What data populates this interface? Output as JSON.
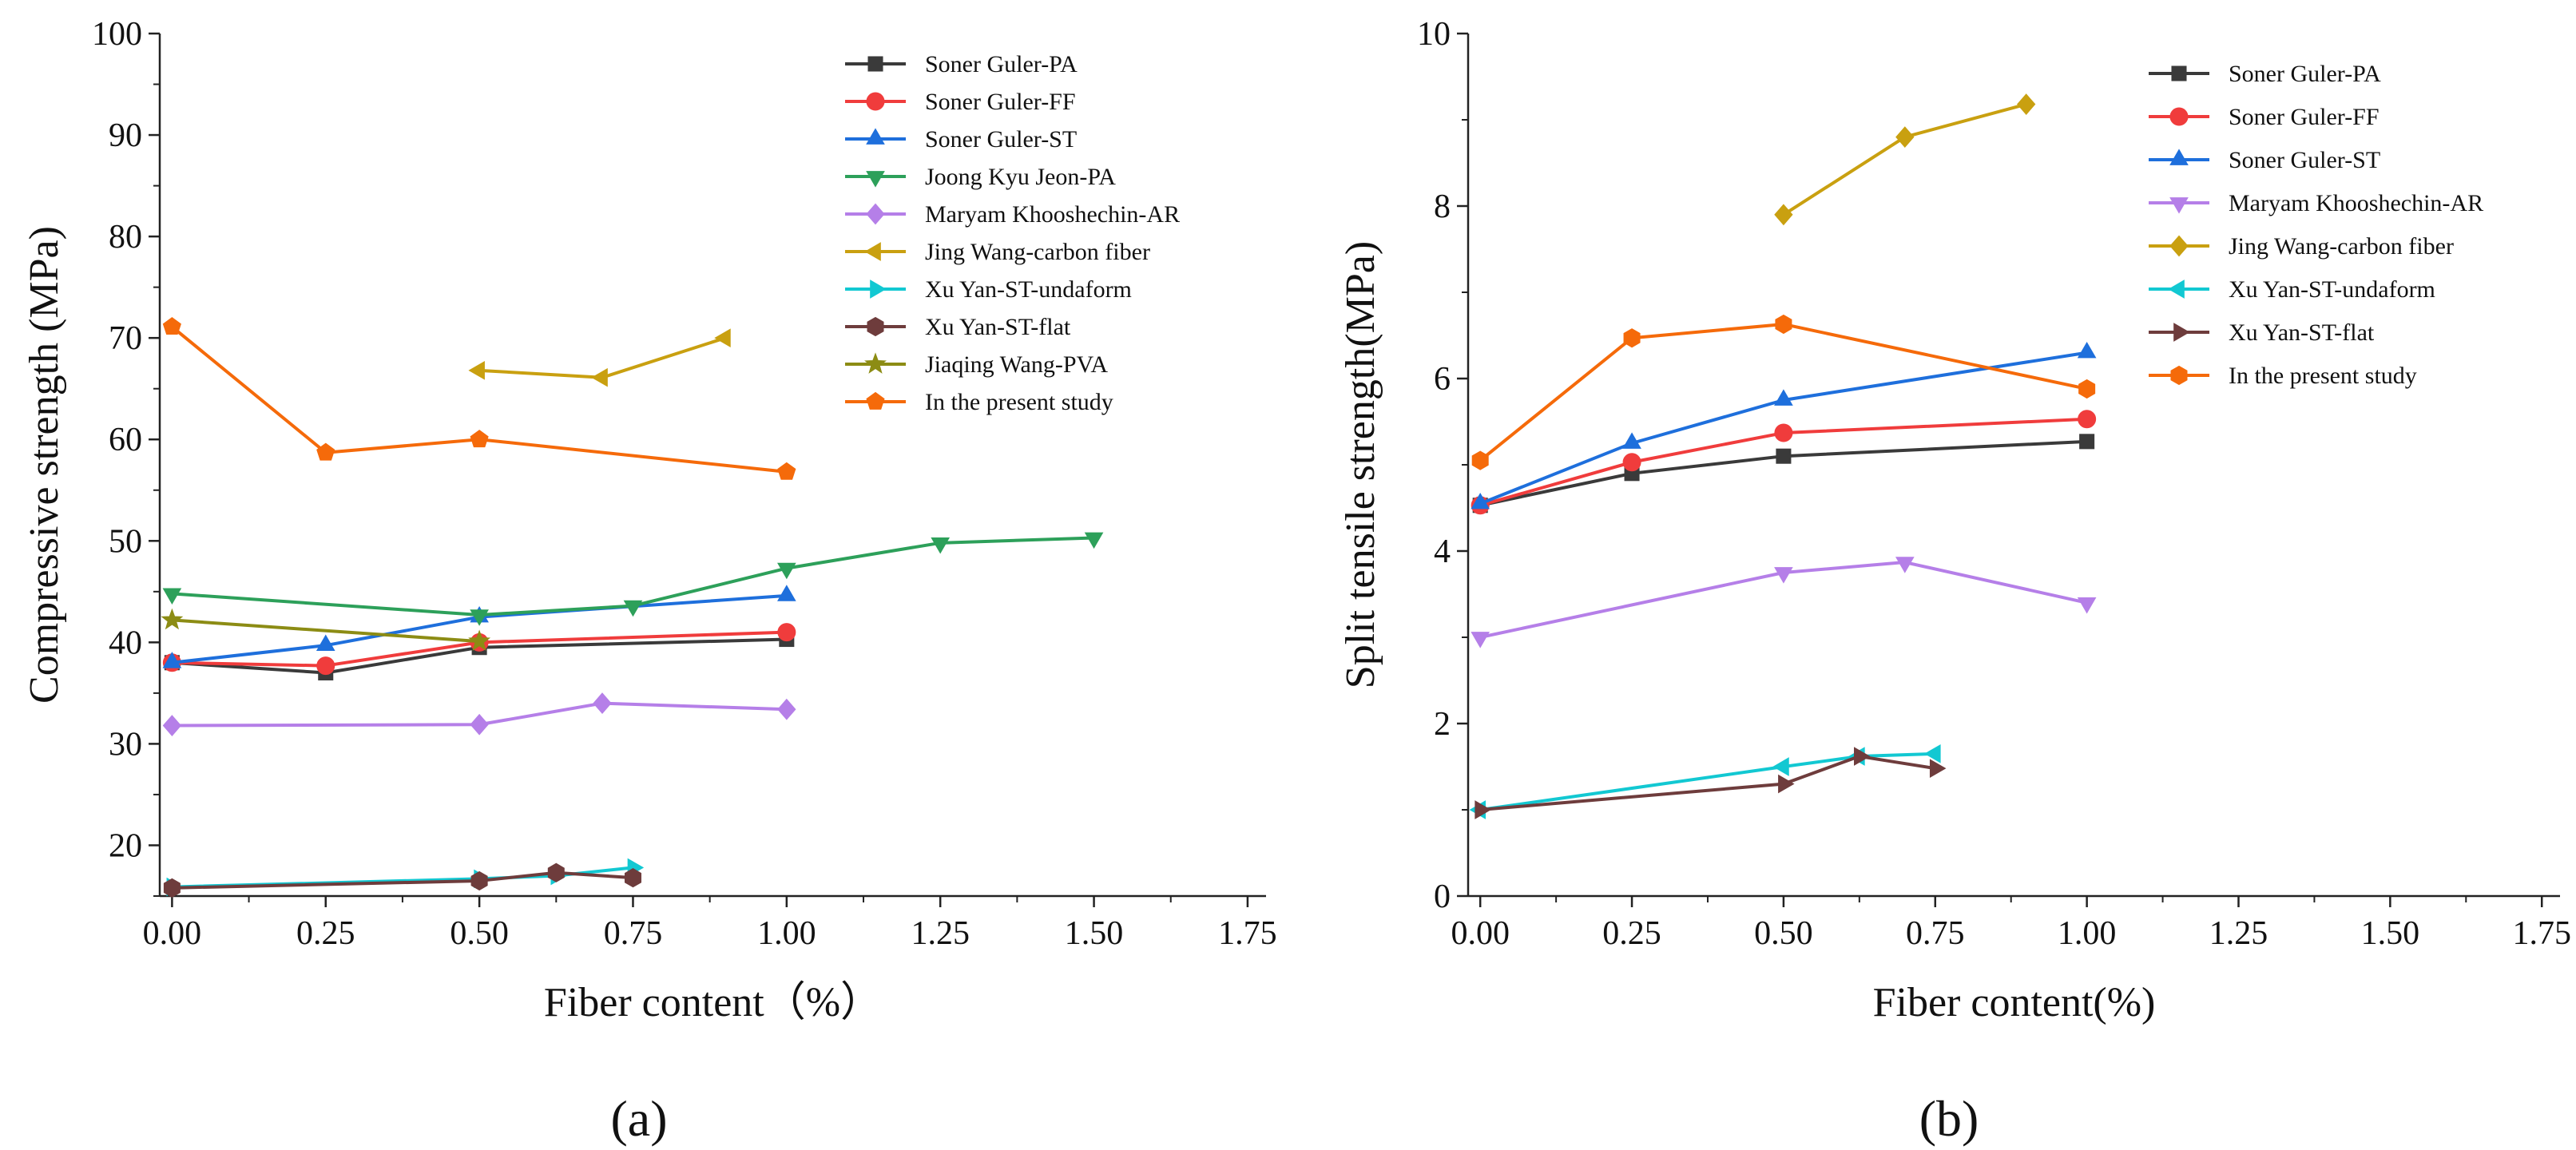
{
  "panel_labels": [
    "(a)",
    "(b)"
  ],
  "colors": {
    "Soner Guler-PA": "#3a3a3a",
    "Soner Guler-FF": "#f03c3c",
    "Soner Guler-ST": "#1e6fdc",
    "Joong Kyu Jeon-PA": "#2da05a",
    "Maryam Khooshechin-AR": "#b57fe8",
    "Jing Wang-carbon fiber": "#c9a010",
    "Xu Yan-ST-undaform": "#12c8d2",
    "Xu Yan-ST-flat": "#6e3c3c",
    "Jiaqing Wang-PVA": "#8c8c14",
    "In the present study": "#f56a0a"
  },
  "chart_data": [
    {
      "type": "line",
      "panel": "(a)",
      "xlabel": "Fiber content（%）",
      "ylabel": "Compressive strength (MPa)",
      "xlim": [
        -0.02,
        1.78
      ],
      "ylim": [
        15,
        100
      ],
      "xticks": [
        "0.00",
        "0.25",
        "0.50",
        "0.75",
        "1.00",
        "1.25",
        "1.50",
        "1.75"
      ],
      "yticks": [
        "20",
        "30",
        "40",
        "50",
        "60",
        "70",
        "80",
        "90",
        "100"
      ],
      "legend_position": "top-right",
      "series": [
        {
          "name": "Soner Guler-PA",
          "marker": "square",
          "x": [
            0,
            0.25,
            0.5,
            1.0
          ],
          "y": [
            38.0,
            37.0,
            39.5,
            40.3
          ]
        },
        {
          "name": "Soner Guler-FF",
          "marker": "circle",
          "x": [
            0,
            0.25,
            0.5,
            1.0
          ],
          "y": [
            38.0,
            37.7,
            40.0,
            41.0
          ]
        },
        {
          "name": "Soner Guler-ST",
          "marker": "triangle-up",
          "x": [
            0,
            0.25,
            0.5,
            1.0
          ],
          "y": [
            38.0,
            39.7,
            42.5,
            44.6
          ]
        },
        {
          "name": "Joong Kyu Jeon-PA",
          "marker": "triangle-down",
          "x": [
            0,
            0.5,
            0.75,
            1.0,
            1.25,
            1.5
          ],
          "y": [
            44.8,
            42.7,
            43.6,
            47.3,
            49.8,
            50.3
          ]
        },
        {
          "name": "Maryam Khooshechin-AR",
          "marker": "diamond",
          "x": [
            0,
            0.5,
            0.7,
            1.0
          ],
          "y": [
            31.8,
            31.9,
            34.0,
            33.4
          ]
        },
        {
          "name": "Jing Wang-carbon fiber",
          "marker": "triangle-left",
          "x": [
            0.5,
            0.7,
            0.9
          ],
          "y": [
            66.8,
            66.1,
            70.0
          ]
        },
        {
          "name": "Xu Yan-ST-undaform",
          "marker": "triangle-right",
          "x": [
            0,
            0.5,
            0.625,
            0.75
          ],
          "y": [
            15.9,
            16.7,
            17.0,
            17.8
          ]
        },
        {
          "name": "Xu Yan-ST-flat",
          "marker": "hexagon",
          "x": [
            0,
            0.5,
            0.625,
            0.75
          ],
          "y": [
            15.8,
            16.5,
            17.3,
            16.8
          ]
        },
        {
          "name": "Jiaqing Wang-PVA",
          "marker": "star",
          "x": [
            0,
            0.5
          ],
          "y": [
            42.2,
            40.1
          ]
        },
        {
          "name": "In the present study",
          "marker": "pentagon",
          "x": [
            0,
            0.25,
            0.5,
            1.0
          ],
          "y": [
            71.1,
            58.7,
            60.0,
            56.8
          ]
        }
      ]
    },
    {
      "type": "line",
      "panel": "(b)",
      "xlabel": "Fiber content(%)",
      "ylabel": "Split tensile strength(MPa)",
      "xlim": [
        -0.02,
        1.78
      ],
      "ylim": [
        0,
        10
      ],
      "xticks": [
        "0.00",
        "0.25",
        "0.50",
        "0.75",
        "1.00",
        "1.25",
        "1.50",
        "1.75"
      ],
      "yticks": [
        "0",
        "2",
        "4",
        "6",
        "8",
        "10"
      ],
      "legend_position": "top-right",
      "series": [
        {
          "name": "Soner Guler-PA",
          "marker": "square",
          "x": [
            0,
            0.25,
            0.5,
            1.0
          ],
          "y": [
            4.53,
            4.9,
            5.1,
            5.27
          ]
        },
        {
          "name": "Soner Guler-FF",
          "marker": "circle",
          "x": [
            0,
            0.25,
            0.5,
            1.0
          ],
          "y": [
            4.53,
            5.03,
            5.37,
            5.53
          ]
        },
        {
          "name": "Soner Guler-ST",
          "marker": "triangle-up",
          "x": [
            0,
            0.25,
            0.5,
            1.0
          ],
          "y": [
            4.55,
            5.25,
            5.75,
            6.3
          ]
        },
        {
          "name": "Maryam Khooshechin-AR",
          "marker": "triangle-down",
          "x": [
            0,
            0.5,
            0.7,
            1.0
          ],
          "y": [
            3.0,
            3.75,
            3.87,
            3.4
          ]
        },
        {
          "name": "Jing Wang-carbon fiber",
          "marker": "diamond",
          "x": [
            0.5,
            0.7,
            0.9
          ],
          "y": [
            7.9,
            8.8,
            9.18
          ]
        },
        {
          "name": "Xu Yan-ST-undaform",
          "marker": "triangle-left",
          "x": [
            0,
            0.5,
            0.625,
            0.75
          ],
          "y": [
            1.0,
            1.5,
            1.62,
            1.65
          ]
        },
        {
          "name": "Xu Yan-ST-flat",
          "marker": "triangle-right",
          "x": [
            0,
            0.5,
            0.625,
            0.75
          ],
          "y": [
            1.0,
            1.3,
            1.62,
            1.48
          ]
        },
        {
          "name": "In the present study",
          "marker": "hexagon",
          "x": [
            0,
            0.25,
            0.5,
            1.0
          ],
          "y": [
            5.05,
            6.47,
            6.63,
            5.88
          ]
        }
      ]
    }
  ]
}
